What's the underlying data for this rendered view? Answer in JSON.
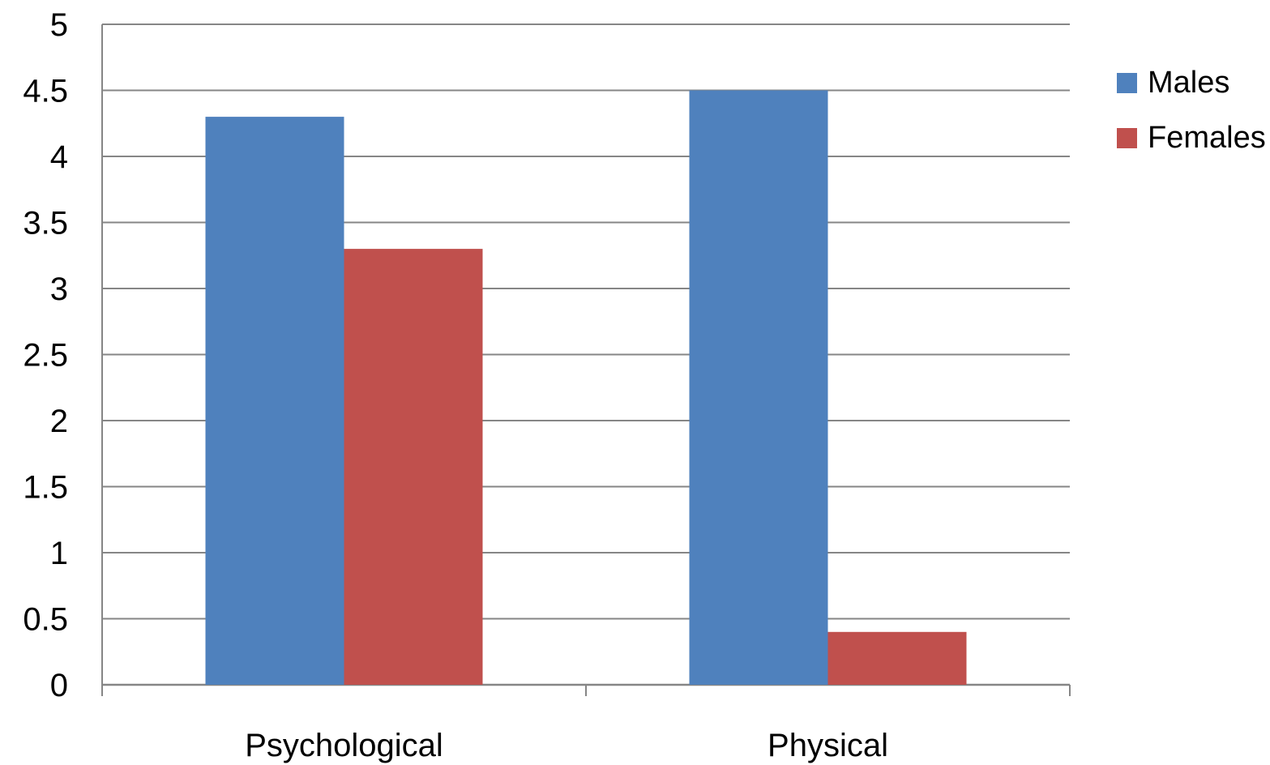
{
  "chart_data": {
    "type": "bar",
    "categories": [
      "Psychological",
      "Physical"
    ],
    "series": [
      {
        "name": "Males",
        "values": [
          4.3,
          4.5
        ],
        "color": "#4F81BD"
      },
      {
        "name": "Females",
        "values": [
          3.3,
          0.4
        ],
        "color": "#C0504D"
      }
    ],
    "title": "",
    "xlabel": "",
    "ylabel": "",
    "ylim": [
      0,
      5
    ],
    "yticks": [
      "0",
      "0.5",
      "1",
      "1.5",
      "2",
      "2.5",
      "3",
      "3.5",
      "4",
      "4.5",
      "5"
    ],
    "grid": true,
    "legend_position": "right"
  }
}
